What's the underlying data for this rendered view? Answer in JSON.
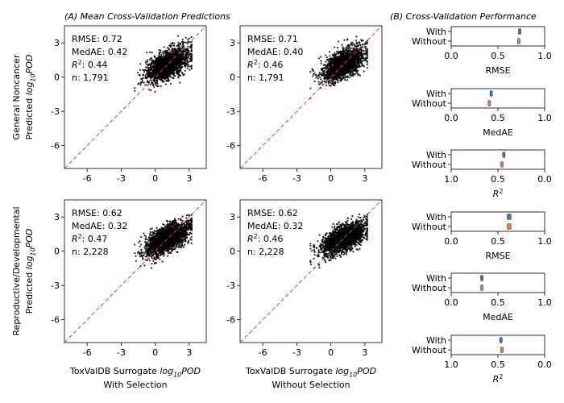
{
  "titles": {
    "left": "(A) Mean Cross-Validation Predictions",
    "right": "(B) Cross-Validation Performance"
  },
  "colors": {
    "points": "#000000",
    "identity_line": "#c44e52",
    "with_box": "#4c72b0",
    "without_box": "#dd8452",
    "frame": "#000000"
  },
  "chart_data": [
    {
      "type": "scatter",
      "row": "General Noncancer",
      "column": "With Selection",
      "ylabel": "General Noncancer\nPredicted log10POD",
      "xlim": [
        -8,
        4.5
      ],
      "ylim": [
        -8,
        4.5
      ],
      "xticks": [
        "-6",
        "-3",
        "0",
        "3"
      ],
      "yticks": [
        "-6",
        "-3",
        "0",
        "3"
      ],
      "identity_line": true,
      "stats": [
        "RMSE: 0.72",
        "MedAE: 0.42",
        "R²: 0.44",
        "n: 1,791"
      ],
      "point_cloud": {
        "n": 1791,
        "x_center": 1.1,
        "x_spread": 0.95,
        "slope": 0.44,
        "y_spread": 0.62,
        "x_min": -1.8,
        "x_max": 3.2
      }
    },
    {
      "type": "scatter",
      "row": "General Noncancer",
      "column": "Without Selection",
      "xlim": [
        -8,
        4.5
      ],
      "ylim": [
        -8,
        4.5
      ],
      "xticks": [
        "-6",
        "-3",
        "0",
        "3"
      ],
      "yticks": [
        "-6",
        "-3",
        "0",
        "3"
      ],
      "identity_line": true,
      "stats": [
        "RMSE: 0.71",
        "MedAE: 0.40",
        "R²: 0.46",
        "n: 1,791"
      ],
      "point_cloud": {
        "n": 1791,
        "x_center": 1.1,
        "x_spread": 0.95,
        "slope": 0.46,
        "y_spread": 0.6,
        "x_min": -1.8,
        "x_max": 3.2
      }
    },
    {
      "type": "scatter",
      "row": "Reproductive/Developmental",
      "column": "With Selection",
      "ylabel": "Reproductive/Developmental\nPredicted log10POD",
      "xlabel": "ToxValDB Surrogate log10POD\nWith Selection",
      "xlim": [
        -8,
        4.5
      ],
      "ylim": [
        -8,
        4.5
      ],
      "xticks": [
        "-6",
        "-3",
        "0",
        "3"
      ],
      "yticks": [
        "-6",
        "-3",
        "0",
        "3"
      ],
      "identity_line": true,
      "stats": [
        "RMSE: 0.62",
        "MedAE: 0.32",
        "R²: 0.47",
        "n: 2,228"
      ],
      "point_cloud": {
        "n": 2228,
        "x_center": 1.1,
        "x_spread": 0.95,
        "slope": 0.47,
        "y_spread": 0.55,
        "x_min": -1.8,
        "x_max": 3.2
      }
    },
    {
      "type": "scatter",
      "row": "Reproductive/Developmental",
      "column": "Without Selection",
      "xlabel": "ToxValDB Surrogate log10POD\nWithout Selection",
      "xlim": [
        -8,
        4.5
      ],
      "ylim": [
        -8,
        4.5
      ],
      "xticks": [
        "-6",
        "-3",
        "0",
        "3"
      ],
      "yticks": [
        "-6",
        "-3",
        "0",
        "3"
      ],
      "identity_line": true,
      "stats": [
        "RMSE: 0.62",
        "MedAE: 0.32",
        "R²: 0.46",
        "n: 2,228"
      ],
      "point_cloud": {
        "n": 2228,
        "x_center": 1.1,
        "x_spread": 0.95,
        "slope": 0.46,
        "y_spread": 0.55,
        "x_min": -1.8,
        "x_max": 3.2
      }
    },
    {
      "type": "box",
      "orientation": "horizontal",
      "categories": [
        "With",
        "Without"
      ],
      "xlabel": "RMSE",
      "xlim": [
        0.0,
        1.0
      ],
      "xticks": [
        "0.0",
        "0.5",
        "1.0"
      ],
      "values": {
        "With": [
          0.72,
          0.73
        ],
        "Without": [
          0.71,
          0.72
        ]
      }
    },
    {
      "type": "box",
      "orientation": "horizontal",
      "categories": [
        "With",
        "Without"
      ],
      "xlabel": "MedAE",
      "xlim": [
        0.0,
        1.0
      ],
      "xticks": [
        "0.0",
        "0.5",
        "1.0"
      ],
      "values": {
        "With": [
          0.415,
          0.425
        ],
        "Without": [
          0.395,
          0.405
        ]
      }
    },
    {
      "type": "box",
      "orientation": "horizontal",
      "categories": [
        "With",
        "Without"
      ],
      "xlabel": "R²",
      "xlim": [
        1.0,
        0.0
      ],
      "xticks": [
        "1.0",
        "0.5",
        "0.0"
      ],
      "values": {
        "With": [
          0.43,
          0.45
        ],
        "Without": [
          0.45,
          0.47
        ]
      }
    },
    {
      "type": "box",
      "orientation": "horizontal",
      "categories": [
        "With",
        "Without"
      ],
      "xlabel": "RMSE",
      "xlim": [
        0.0,
        1.0
      ],
      "xticks": [
        "0.0",
        "0.5",
        "1.0"
      ],
      "values": {
        "With": [
          0.6,
          0.64
        ],
        "Without": [
          0.6,
          0.64
        ]
      }
    },
    {
      "type": "box",
      "orientation": "horizontal",
      "categories": [
        "With",
        "Without"
      ],
      "xlabel": "MedAE",
      "xlim": [
        0.0,
        1.0
      ],
      "xticks": [
        "0.0",
        "0.5",
        "1.0"
      ],
      "values": {
        "With": [
          0.315,
          0.325
        ],
        "Without": [
          0.315,
          0.325
        ]
      }
    },
    {
      "type": "box",
      "orientation": "horizontal",
      "categories": [
        "With",
        "Without"
      ],
      "xlabel": "R²",
      "xlim": [
        1.0,
        0.0
      ],
      "xticks": [
        "1.0",
        "0.5",
        "0.0"
      ],
      "values": {
        "With": [
          0.46,
          0.48
        ],
        "Without": [
          0.45,
          0.47
        ]
      }
    }
  ]
}
